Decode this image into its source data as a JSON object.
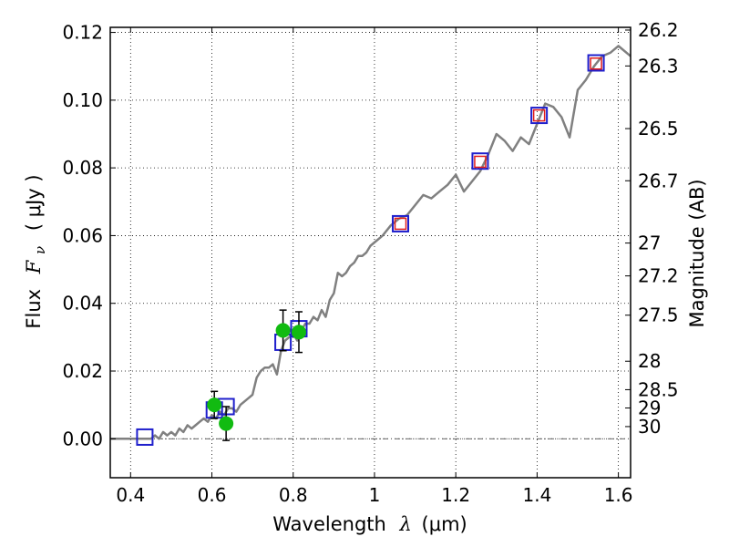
{
  "chart_data": {
    "type": "line",
    "xlabel_prefix": "Wavelength",
    "xlabel_symbol": "λ",
    "xlabel_unit": "(μm)",
    "ylabel_prefix": "Flux",
    "ylabel_symbol": "F",
    "ylabel_subscript": "ν",
    "ylabel_unit": "( μJy )",
    "y2label": "Magnitude (AB)",
    "xlim": [
      0.35,
      1.63
    ],
    "ylim": [
      -0.0115,
      0.1215
    ],
    "xticks": [
      0.4,
      0.6,
      0.8,
      1.0,
      1.2,
      1.4,
      1.6
    ],
    "xtick_labels": [
      "0.4",
      "0.6",
      "0.8",
      "1",
      "1.2",
      "1.4",
      "1.6"
    ],
    "yticks": [
      0.0,
      0.02,
      0.04,
      0.06,
      0.08,
      0.1,
      0.12
    ],
    "ytick_labels": [
      "0.00",
      "0.02",
      "0.04",
      "0.06",
      "0.08",
      "0.10",
      "0.12"
    ],
    "y2ticks": [
      {
        "label": "26.2",
        "flux": 0.1207
      },
      {
        "label": "26.3",
        "flux": 0.1101
      },
      {
        "label": "26.5",
        "flux": 0.0916
      },
      {
        "label": "26.7",
        "flux": 0.0762
      },
      {
        "label": "27",
        "flux": 0.0578
      },
      {
        "label": "27.2",
        "flux": 0.0481
      },
      {
        "label": "27.5",
        "flux": 0.0365
      },
      {
        "label": "28",
        "flux": 0.0229
      },
      {
        "label": "28.5",
        "flux": 0.0145
      },
      {
        "label": "29",
        "flux": 0.0091
      },
      {
        "label": "30",
        "flux": 0.0036
      }
    ],
    "grid": true,
    "zero_line": true,
    "colors": {
      "model": "#808080",
      "photometry": "#1f1fcc",
      "model_photometry": "#e01c1c",
      "spectrum_points": "#11bb11",
      "errorbar": "#000000"
    },
    "series": [
      {
        "role": "model",
        "style": "line",
        "x": [
          0.35,
          0.36,
          0.37,
          0.38,
          0.39,
          0.4,
          0.41,
          0.42,
          0.43,
          0.44,
          0.45,
          0.46,
          0.47,
          0.48,
          0.49,
          0.5,
          0.51,
          0.52,
          0.53,
          0.54,
          0.55,
          0.56,
          0.57,
          0.58,
          0.59,
          0.6,
          0.61,
          0.62,
          0.63,
          0.64,
          0.65,
          0.66,
          0.67,
          0.68,
          0.69,
          0.7,
          0.71,
          0.72,
          0.73,
          0.74,
          0.75,
          0.76,
          0.77,
          0.78,
          0.79,
          0.8,
          0.81,
          0.82,
          0.83,
          0.84,
          0.85,
          0.86,
          0.87,
          0.88,
          0.89,
          0.9,
          0.91,
          0.92,
          0.93,
          0.94,
          0.95,
          0.96,
          0.97,
          0.98,
          0.99,
          1.0,
          1.02,
          1.04,
          1.06,
          1.08,
          1.1,
          1.12,
          1.14,
          1.16,
          1.18,
          1.2,
          1.22,
          1.24,
          1.26,
          1.28,
          1.3,
          1.32,
          1.34,
          1.36,
          1.38,
          1.4,
          1.42,
          1.44,
          1.46,
          1.48,
          1.5,
          1.52,
          1.54,
          1.56,
          1.58,
          1.6,
          1.61,
          1.63
        ],
        "y": [
          0.0,
          0.0,
          0.0,
          0.0,
          0.0,
          0.0,
          0.0,
          0.0,
          0.0,
          0.0,
          0.0,
          0.001,
          0.0,
          0.002,
          0.001,
          0.002,
          0.001,
          0.003,
          0.002,
          0.004,
          0.003,
          0.004,
          0.005,
          0.006,
          0.005,
          0.007,
          0.006,
          0.008,
          0.007,
          0.009,
          0.009,
          0.008,
          0.01,
          0.011,
          0.012,
          0.013,
          0.018,
          0.02,
          0.021,
          0.021,
          0.022,
          0.019,
          0.026,
          0.029,
          0.03,
          0.031,
          0.029,
          0.032,
          0.034,
          0.034,
          0.036,
          0.035,
          0.038,
          0.036,
          0.041,
          0.043,
          0.049,
          0.048,
          0.049,
          0.051,
          0.052,
          0.054,
          0.054,
          0.055,
          0.057,
          0.058,
          0.06,
          0.063,
          0.065,
          0.066,
          0.069,
          0.072,
          0.071,
          0.073,
          0.075,
          0.078,
          0.073,
          0.076,
          0.079,
          0.084,
          0.09,
          0.088,
          0.085,
          0.089,
          0.087,
          0.093,
          0.099,
          0.098,
          0.095,
          0.089,
          0.103,
          0.106,
          0.11,
          0.113,
          0.114,
          0.116,
          0.115,
          0.113
        ]
      },
      {
        "role": "photometry",
        "style": "open-square-large",
        "x": [
          0.435,
          0.606,
          0.635,
          0.775,
          0.814,
          1.064,
          1.26,
          1.405,
          1.545
        ],
        "y": [
          0.0005,
          0.0085,
          0.0095,
          0.0285,
          0.0325,
          0.0635,
          0.082,
          0.0955,
          0.111
        ]
      },
      {
        "role": "model_photometry",
        "style": "open-square-small",
        "x": [
          1.064,
          1.26,
          1.405,
          1.545
        ],
        "y": [
          0.0635,
          0.0818,
          0.0955,
          0.1108
        ]
      },
      {
        "role": "spectrum_points",
        "style": "filled-circle",
        "x": [
          0.606,
          0.635,
          0.775,
          0.814
        ],
        "y": [
          0.01,
          0.0045,
          0.032,
          0.0315
        ],
        "yerr": [
          0.004,
          0.005,
          0.006,
          0.006
        ]
      }
    ]
  }
}
